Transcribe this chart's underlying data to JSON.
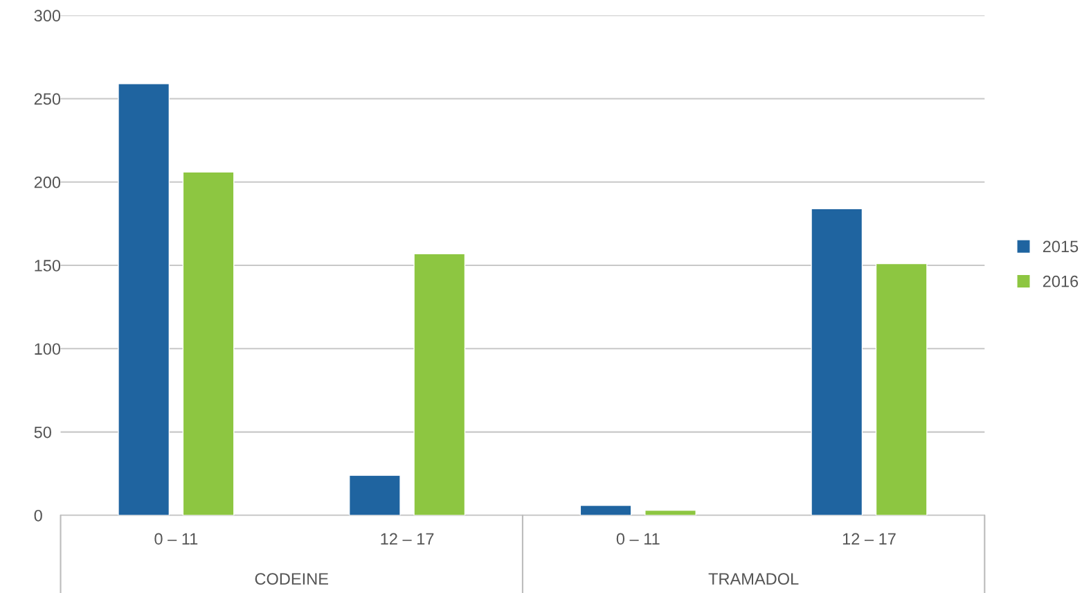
{
  "chart_data": {
    "type": "bar",
    "categories": [
      "0 – 11",
      "12 – 17",
      "0 – 11",
      "12 – 17"
    ],
    "series": [
      {
        "name": "2015",
        "color": "#1f64a0",
        "values": [
          259,
          24,
          6,
          184
        ]
      },
      {
        "name": "2016",
        "color": "#8dc641",
        "values": [
          206,
          157,
          3,
          151
        ]
      }
    ],
    "annotations": [
      "CODEINE",
      "TRAMADOL"
    ],
    "ylim": [
      0,
      300
    ],
    "yticks": [
      0,
      50,
      100,
      150,
      200,
      250,
      300
    ],
    "grid": "y",
    "legend": "right"
  }
}
